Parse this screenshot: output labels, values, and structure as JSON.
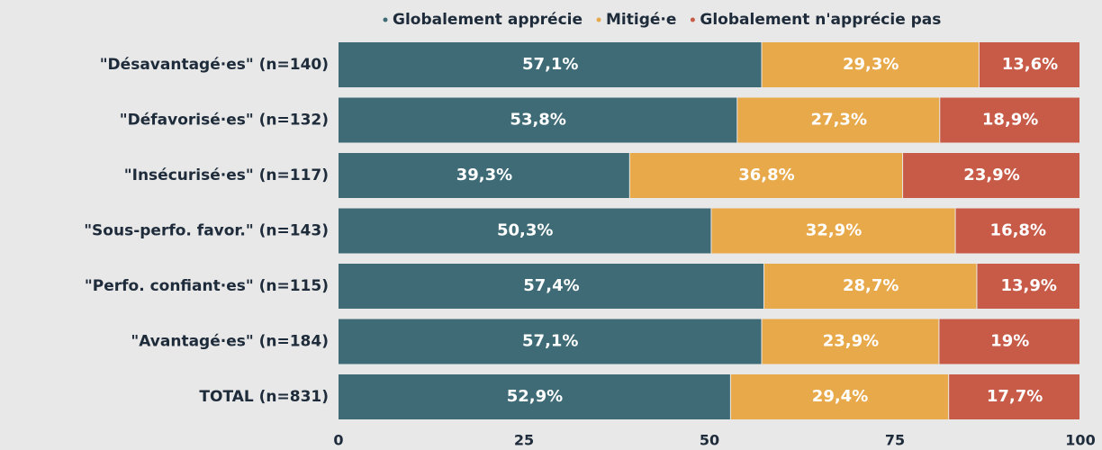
{
  "chart_data": {
    "type": "stacked-bar-horizontal",
    "categories": [
      "\"Désavantagé·es\" (n=140)",
      "\"Défavorisé·es\" (n=132)",
      "\"Insécurisé·es\" (n=117)",
      "\"Sous-perfo. favor.\" (n=143)",
      "\"Perfo. confiant·es\" (n=115)",
      "\"Avantagé·es\" (n=184)",
      "TOTAL (n=831)"
    ],
    "series": [
      {
        "name": "Globalement apprécie",
        "color": "#3e6b75",
        "values": [
          57.1,
          53.8,
          39.3,
          50.3,
          57.4,
          57.1,
          52.9
        ],
        "value_labels": [
          "57,1%",
          "53,8%",
          "39,3%",
          "50,3%",
          "57,4%",
          "57,1%",
          "52,9%"
        ]
      },
      {
        "name": "Mitigé·e",
        "color": "#e8a94a",
        "values": [
          29.3,
          27.3,
          36.8,
          32.9,
          28.7,
          23.9,
          29.4
        ],
        "value_labels": [
          "29,3%",
          "27,3%",
          "36,8%",
          "32,9%",
          "28,7%",
          "23,9%",
          "29,4%"
        ]
      },
      {
        "name": "Globalement n'apprécie pas",
        "color": "#c75b48",
        "values": [
          13.6,
          18.9,
          23.9,
          16.8,
          13.9,
          19,
          17.7
        ],
        "value_labels": [
          "13,6%",
          "18,9%",
          "23,9%",
          "16,8%",
          "13,9%",
          "19%",
          "17,7%"
        ]
      }
    ],
    "xlim": [
      0,
      100
    ],
    "xticks": [
      0,
      25,
      50,
      75,
      100
    ],
    "legend": "top"
  }
}
